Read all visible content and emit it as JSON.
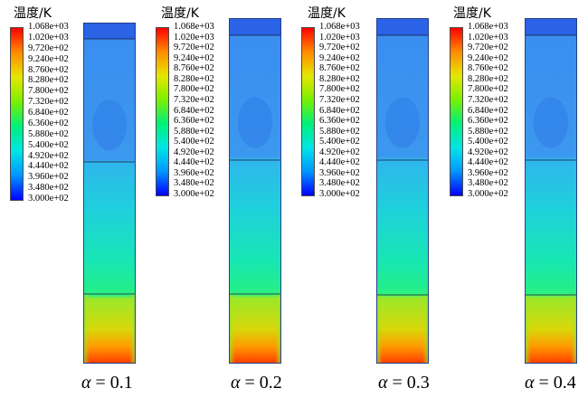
{
  "legend_title": "温度/K",
  "legend_ticks": [
    "1.068e+03",
    "1.020e+03",
    "9.720e+02",
    "9.240e+02",
    "8.760e+02",
    "8.280e+02",
    "7.800e+02",
    "7.320e+02",
    "6.840e+02",
    "6.360e+02",
    "5.880e+02",
    "5.400e+02",
    "4.920e+02",
    "4.440e+02",
    "3.960e+02",
    "3.480e+02",
    "3.000e+02"
  ],
  "panels": [
    {
      "alpha_symbol": "α",
      "alpha_text": "= 0.1"
    },
    {
      "alpha_symbol": "α",
      "alpha_text": "= 0.2"
    },
    {
      "alpha_symbol": "α",
      "alpha_text": "= 0.3"
    },
    {
      "alpha_symbol": "α",
      "alpha_text": "= 0.4"
    }
  ],
  "colormap": [
    "#0000ff",
    "#0096ff",
    "#00e6e6",
    "#00f07a",
    "#7af000",
    "#e6e600",
    "#ff8c00",
    "#ff0000"
  ]
}
